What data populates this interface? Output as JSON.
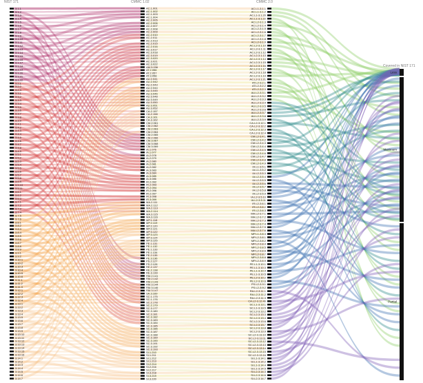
{
  "headers": {
    "col1": "NIST 171",
    "col2": "CMMC 1.02",
    "col3": "CMMC 2.0",
    "col4": "Covered in NIST 171"
  },
  "coverage_nodes": [
    {
      "label": "Less"
    },
    {
      "label": "Maximum"
    },
    {
      "label": "Partial"
    }
  ],
  "col1_labels": [
    "3.1.1",
    "3.1.2",
    "3.1.3",
    "3.1.4",
    "3.1.5",
    "3.1.6",
    "3.1.7",
    "3.1.8",
    "3.1.9",
    "3.1.10",
    "3.1.11",
    "3.1.12",
    "3.1.13",
    "3.1.14",
    "3.1.15",
    "3.1.16",
    "3.1.17",
    "3.1.18",
    "3.1.19",
    "3.1.20",
    "3.1.21",
    "3.1.22",
    "3.2.1",
    "3.2.2",
    "3.2.3",
    "3.3.1",
    "3.3.2",
    "3.3.3",
    "3.3.4",
    "3.3.5",
    "3.3.6",
    "3.3.7",
    "3.3.8",
    "3.3.9",
    "3.4.1",
    "3.4.2",
    "3.4.3",
    "3.4.4",
    "3.4.5",
    "3.4.6",
    "3.4.7",
    "3.4.8",
    "3.4.9",
    "3.5.1",
    "3.5.2",
    "3.5.3",
    "3.5.4",
    "3.5.5",
    "3.5.6",
    "3.5.7",
    "3.5.8",
    "3.5.9",
    "3.5.10",
    "3.5.11",
    "3.6.1",
    "3.6.2",
    "3.6.3",
    "3.7.1",
    "3.7.2",
    "3.7.3",
    "3.7.4",
    "3.7.5",
    "3.7.6",
    "3.8.1",
    "3.8.2",
    "3.8.3",
    "3.8.4",
    "3.8.5",
    "3.8.6",
    "3.8.7",
    "3.8.8",
    "3.8.9",
    "3.9.1",
    "3.9.2",
    "3.10.1",
    "3.10.2",
    "3.10.3",
    "3.10.4",
    "3.10.5",
    "3.10.6",
    "3.11.1",
    "3.11.2",
    "3.11.3",
    "3.12.1",
    "3.12.2",
    "3.12.3",
    "3.12.4",
    "3.13.1",
    "3.13.2",
    "3.13.3",
    "3.13.4",
    "3.13.5",
    "3.13.6",
    "3.13.7",
    "3.13.8",
    "3.13.9",
    "3.13.10",
    "3.13.11",
    "3.13.12",
    "3.13.13",
    "3.13.14",
    "3.13.15",
    "3.13.16",
    "3.14.1",
    "3.14.2",
    "3.14.3",
    "3.14.4",
    "3.14.5",
    "3.14.6",
    "3.14.7"
  ],
  "col2_labels": [
    "AC.1.001",
    "AC.1.002",
    "AC.1.003",
    "AC.1.004",
    "AC.2.005",
    "AC.2.006",
    "AC.2.007",
    "AC.2.008",
    "AC.2.009",
    "AC.2.010",
    "AC.2.011",
    "AC.2.013",
    "AC.2.015",
    "AC.2.016",
    "AC.3.017",
    "AC.3.018",
    "AC.3.019",
    "AC.3.020",
    "AC.3.021",
    "AC.3.022",
    "AM.3.036",
    "AT.2.056",
    "AT.2.057",
    "AT.3.058",
    "AU.2.041",
    "AU.2.042",
    "AU.2.043",
    "AU.2.044",
    "AU.3.045",
    "AU.3.046",
    "AU.3.048",
    "AU.3.049",
    "AU.3.050",
    "AU.3.051",
    "AU.3.052",
    "CA.2.157",
    "CA.2.158",
    "CA.3.161",
    "CA.3.162",
    "CM.2.061",
    "CM.2.062",
    "CM.2.063",
    "CM.2.064",
    "CM.2.065",
    "CM.2.066",
    "CM.3.067",
    "CM.3.068",
    "CM.3.069",
    "IA.1.076",
    "IA.1.077",
    "IA.2.078",
    "IA.2.079",
    "IA.2.080",
    "IA.2.081",
    "IA.2.082",
    "IA.3.083",
    "IA.3.084",
    "IA.3.085",
    "IA.3.086",
    "IR.2.092",
    "IR.2.093",
    "IR.2.094",
    "IR.2.096",
    "IR.2.097",
    "IR.3.098",
    "IR.3.099",
    "MA.2.111",
    "MA.2.112",
    "MA.2.113",
    "MA.2.114",
    "MA.3.115",
    "MA.3.116",
    "MP.1.118",
    "MP.2.119",
    "MP.2.120",
    "MP.2.121",
    "MP.3.122",
    "MP.3.123",
    "MP.3.124",
    "MP.3.125",
    "PE.1.131",
    "PE.1.132",
    "PE.1.133",
    "PE.1.134",
    "PE.2.135",
    "PE.3.136",
    "PS.2.127",
    "PS.2.128",
    "RE.2.137",
    "RE.2.138",
    "RE.3.139",
    "RM.2.141",
    "RM.2.142",
    "RM.2.143",
    "RM.3.144",
    "RM.3.146",
    "RM.3.147",
    "SA.3.169",
    "SC.1.175",
    "SC.1.176",
    "SC.2.178",
    "SC.2.179",
    "SC.3.177",
    "SC.3.180",
    "SC.3.181",
    "SC.3.182",
    "SC.3.183",
    "SC.3.184",
    "SC.3.185",
    "SC.3.186",
    "SC.3.187",
    "SC.3.188",
    "SC.3.189",
    "SC.3.190",
    "SC.3.191",
    "SC.3.192",
    "SC.3.193",
    "SI.1.210",
    "SI.1.211",
    "SI.1.212",
    "SI.1.213",
    "SI.2.214",
    "SI.2.216",
    "SI.2.217",
    "SI.3.218",
    "SI.3.219",
    "SI.3.220"
  ],
  "col3_labels": [
    "AC.L1-3.1.1",
    "AC.L1-3.1.2",
    "AC.L1-3.1.20",
    "AC.L1-3.1.22",
    "AC.L2-3.1.3",
    "AC.L2-3.1.4",
    "AC.L2-3.1.5",
    "AC.L2-3.1.6",
    "AC.L2-3.1.7",
    "AC.L2-3.1.8",
    "AC.L2-3.1.9",
    "AC.L2-3.1.10",
    "AC.L2-3.1.11",
    "AC.L2-3.1.12",
    "AC.L2-3.1.13",
    "AC.L2-3.1.14",
    "AC.L2-3.1.15",
    "AC.L2-3.1.16",
    "AC.L2-3.1.17",
    "AC.L2-3.1.18",
    "AC.L2-3.1.19",
    "AC.L2-3.1.21",
    "AT.L2-3.2.1",
    "AT.L2-3.2.2",
    "AT.L2-3.2.3",
    "AU.L2-3.3.1",
    "AU.L2-3.3.2",
    "AU.L2-3.3.3",
    "AU.L2-3.3.4",
    "AU.L2-3.3.5",
    "AU.L2-3.3.6",
    "AU.L2-3.3.7",
    "AU.L2-3.3.8",
    "AU.L2-3.3.9",
    "CA.L2-3.12.1",
    "CA.L2-3.12.2",
    "CA.L2-3.12.3",
    "CA.L2-3.12.4",
    "CM.L2-3.4.1",
    "CM.L2-3.4.2",
    "CM.L2-3.4.3",
    "CM.L2-3.4.4",
    "CM.L2-3.4.5",
    "CM.L2-3.4.6",
    "CM.L2-3.4.7",
    "CM.L2-3.4.8",
    "CM.L2-3.4.9",
    "IA.L1-3.5.1",
    "IA.L1-3.5.2",
    "IA.L2-3.5.3",
    "IA.L2-3.5.4",
    "IA.L2-3.5.5",
    "IA.L2-3.5.6",
    "IA.L2-3.5.7",
    "IA.L2-3.5.8",
    "IA.L2-3.5.9",
    "IA.L2-3.5.10",
    "IA.L2-3.5.11",
    "IR.L2-3.6.1",
    "IR.L2-3.6.2",
    "IR.L2-3.6.3",
    "MA.L2-3.7.1",
    "MA.L2-3.7.2",
    "MA.L2-3.7.3",
    "MA.L2-3.7.4",
    "MA.L2-3.7.5",
    "MA.L2-3.7.6",
    "MP.L1-3.8.3",
    "MP.L2-3.8.1",
    "MP.L2-3.8.2",
    "MP.L2-3.8.4",
    "MP.L2-3.8.5",
    "MP.L2-3.8.6",
    "MP.L2-3.8.7",
    "MP.L2-3.8.8",
    "MP.L2-3.8.9",
    "PE.L1-3.10.1",
    "PE.L1-3.10.3",
    "PE.L1-3.10.4",
    "PE.L1-3.10.5",
    "PE.L2-3.10.2",
    "PE.L2-3.10.6",
    "PS.L2-3.9.1",
    "PS.L2-3.9.2",
    "RA.L2-3.11.1",
    "RA.L2-3.11.2",
    "RA.L2-3.11.3",
    "CA.L2-3.12.4b",
    "SC.L1-3.13.1",
    "SC.L1-3.13.5",
    "SC.L2-3.13.2",
    "SC.L2-3.13.3",
    "SC.L2-3.13.4",
    "SC.L2-3.13.6",
    "SC.L2-3.13.7",
    "SC.L2-3.13.8",
    "SC.L2-3.13.9",
    "SC.L2-3.13.10",
    "SC.L2-3.13.11",
    "SC.L2-3.13.12",
    "SC.L2-3.13.13",
    "SC.L2-3.13.14",
    "SC.L2-3.13.15",
    "SC.L2-3.13.16",
    "SI.L1-3.14.1",
    "SI.L1-3.14.2",
    "SI.L1-3.14.4",
    "SI.L1-3.14.5",
    "SI.L2-3.14.3",
    "SI.L2-3.14.6",
    "SI.L2-3.14.7"
  ],
  "colors": {
    "ac": "#b0306a",
    "red": "#d33a3a",
    "orange": "#f4a24a",
    "peach": "#f7c48a",
    "yellow": "#eadf7a",
    "green": "#8ccc64",
    "teal": "#2a8a8a",
    "blue": "#3b6fb0",
    "purple": "#7f5bb5"
  }
}
